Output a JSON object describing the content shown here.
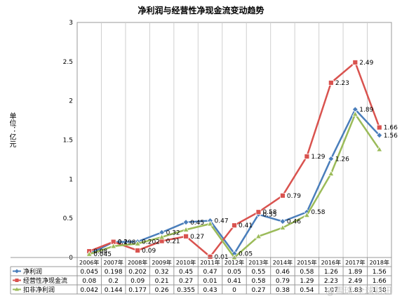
{
  "chart_data": {
    "type": "line",
    "title": "净利润与经营性净现金流变动趋势",
    "ylabel": "单位：亿元",
    "xlabel": "",
    "ylim": [
      0,
      3
    ],
    "yticks": [
      "0",
      "0.5",
      "1",
      "1.5",
      "2",
      "2.5",
      "3"
    ],
    "grid": "vertical",
    "legend": "table-below",
    "categories": [
      "2006年",
      "2007年",
      "2008年",
      "2009年",
      "2010年",
      "2011年",
      "2012年",
      "2013年",
      "2014年",
      "2015年",
      "2016年",
      "2017年",
      "2018年"
    ],
    "series": [
      {
        "name": "净利润",
        "color": "#4a7ebb",
        "marker": "diamond",
        "values": [
          0.045,
          0.198,
          0.202,
          0.32,
          0.45,
          0.47,
          0.05,
          0.55,
          0.46,
          0.58,
          1.26,
          1.89,
          1.56
        ],
        "table": [
          "0.045",
          "0.198",
          "0.202",
          "0.32",
          "0.45",
          "0.47",
          "0.05",
          "0.55",
          "0.46",
          "0.58",
          "1.26",
          "1.89",
          "1.56"
        ]
      },
      {
        "name": "经营性净现金流",
        "color": "#d9534f",
        "marker": "square",
        "values": [
          0.08,
          0.2,
          0.09,
          0.21,
          0.27,
          0.01,
          0.41,
          0.58,
          0.79,
          1.29,
          2.23,
          2.49,
          1.66
        ],
        "table": [
          "0.08",
          "0.2",
          "0.09",
          "0.21",
          "0.27",
          "0.01",
          "0.41",
          "0.58",
          "0.79",
          "1.29",
          "2.23",
          "2.49",
          "1.66"
        ]
      },
      {
        "name": "扣非净利润",
        "color": "#9bbb59",
        "marker": "triangle",
        "values": [
          0.042,
          0.144,
          0.177,
          0.26,
          0.355,
          0.43,
          0,
          0.27,
          0.38,
          0.54,
          1.07,
          1.83,
          1.38
        ],
        "table": [
          "0.042",
          "0.144",
          "0.177",
          "0.26",
          "0.355",
          "0.43",
          "0",
          "0.27",
          "0.38",
          "0.54",
          "1.07",
          "1.83",
          "1.38"
        ]
      }
    ],
    "annotations": [
      {
        "series": 0,
        "labels": [
          "0.045",
          "0.198",
          "0.202",
          "0.32",
          "0.45",
          "0.47",
          "0.05",
          "0.55",
          "0.46",
          "0.58",
          "1.26",
          "1.89",
          "1.56"
        ]
      },
      {
        "series": 1,
        "labels": [
          "0.08",
          "0.2",
          "0.09",
          "0.21",
          "0.27",
          "0.01",
          "0.41",
          "0.58",
          "0.79",
          "1.29",
          "2.23",
          "2.49",
          "1.66"
        ]
      }
    ]
  },
  "watermark": "@雪球 全球财讯"
}
